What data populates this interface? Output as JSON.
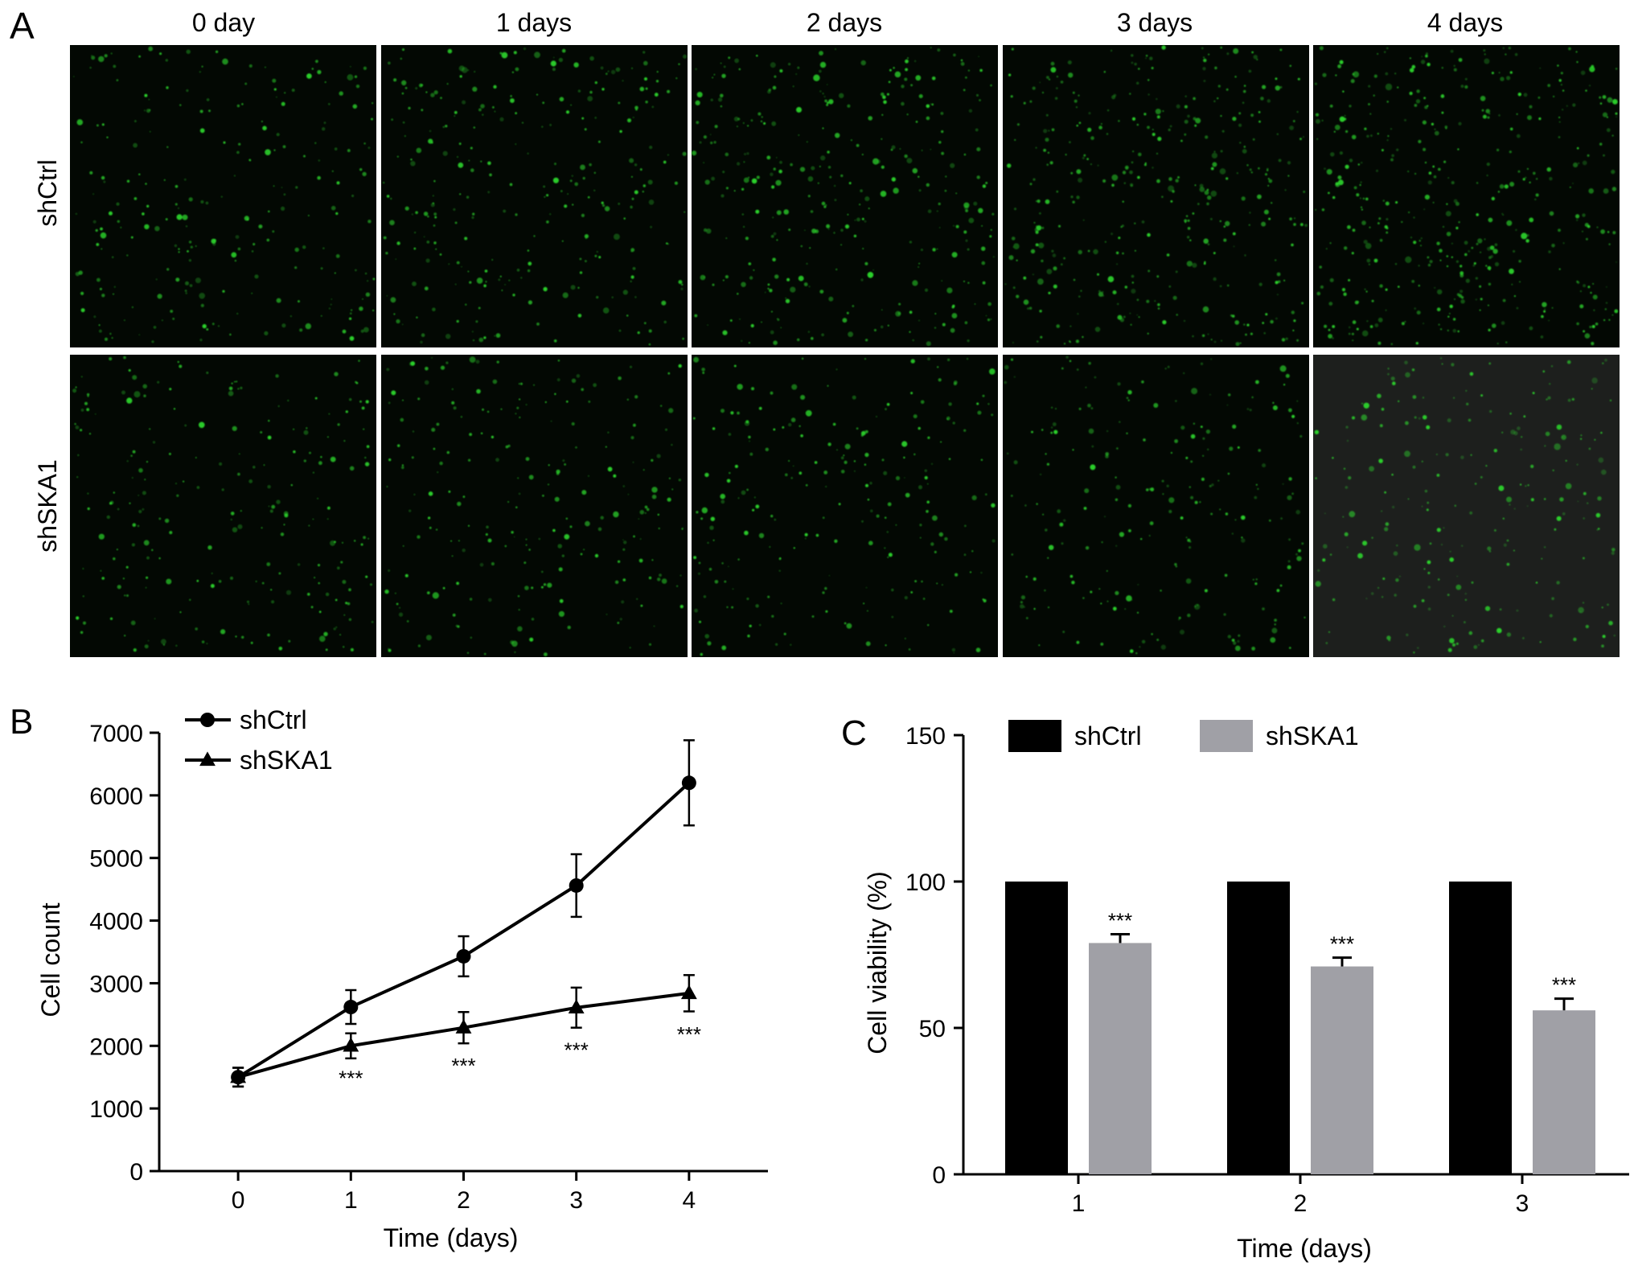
{
  "panel_a": {
    "label": "A",
    "columns": [
      "0 day",
      "1 days",
      "2 days",
      "3 days",
      "4 days"
    ],
    "rows": [
      "shCtrl",
      "shSKA1"
    ]
  },
  "colors": {
    "line": "#000000",
    "shCtrl_bar": "#000000",
    "shSKA1_bar": "#a0a0a6",
    "cell": "#2bd12b",
    "tile_bg": "#030803",
    "tile_bg_grey": "#1d1f1d"
  },
  "chart_data": [
    {
      "type": "line",
      "panel_label": "B",
      "x": [
        0,
        1,
        2,
        3,
        4
      ],
      "xlabel": "Time (days)",
      "ylabel": "Cell count",
      "xlim": [
        -0.7,
        4.7
      ],
      "ylim": [
        0,
        7000
      ],
      "yticks": [
        0,
        1000,
        2000,
        3000,
        4000,
        5000,
        6000,
        7000
      ],
      "xticks": [
        0,
        1,
        2,
        3,
        4
      ],
      "legend": "top-left",
      "series": [
        {
          "name": "shCtrl",
          "marker": "circle",
          "values": [
            1500,
            2620,
            3430,
            4560,
            6200
          ],
          "errors": [
            150,
            270,
            320,
            500,
            680
          ]
        },
        {
          "name": "shSKA1",
          "marker": "triangle",
          "values": [
            1500,
            2000,
            2290,
            2610,
            2840
          ],
          "errors": [
            150,
            200,
            250,
            320,
            290
          ]
        }
      ],
      "annotations": [
        {
          "x": 1,
          "y": 1550,
          "text": "***"
        },
        {
          "x": 2,
          "y": 1750,
          "text": "***"
        },
        {
          "x": 3,
          "y": 2000,
          "text": "***"
        },
        {
          "x": 4,
          "y": 2250,
          "text": "***"
        }
      ]
    },
    {
      "type": "bar",
      "panel_label": "C",
      "categories": [
        "1",
        "2",
        "3"
      ],
      "xlabel": "Time (days)",
      "ylabel": "Cell viability (%)",
      "ylim": [
        0,
        150
      ],
      "yticks": [
        0,
        50,
        100,
        150
      ],
      "legend": "top",
      "series": [
        {
          "name": "shCtrl",
          "values": [
            100,
            100,
            100
          ],
          "errors": [
            0,
            0,
            0
          ]
        },
        {
          "name": "shSKA1",
          "values": [
            79,
            71,
            56
          ],
          "errors": [
            3,
            3,
            4
          ]
        }
      ],
      "annotations": [
        "***",
        "***",
        "***"
      ]
    }
  ]
}
